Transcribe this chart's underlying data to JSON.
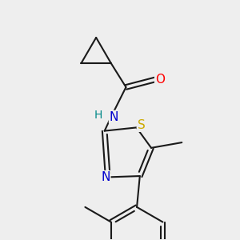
{
  "bg_color": "#eeeeee",
  "bond_color": "#1a1a1a",
  "bond_width": 1.5,
  "atom_colors": {
    "O": "#ff0000",
    "N": "#0000cc",
    "S": "#ccaa00",
    "H": "#008888",
    "C": "#1a1a1a"
  },
  "font_size": 10,
  "fig_size": [
    3.0,
    3.0
  ],
  "dpi": 100
}
